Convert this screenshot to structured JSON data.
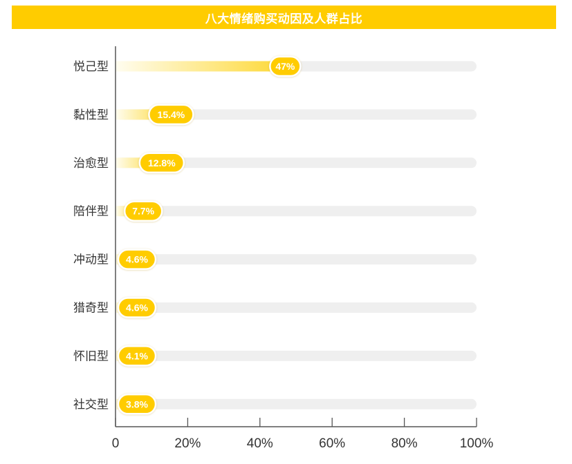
{
  "chart_data": {
    "type": "bar",
    "orientation": "horizontal",
    "title": "八大情绪购买动因及人群占比",
    "categories": [
      "悦己型",
      "黏性型",
      "治愈型",
      "陪伴型",
      "冲动型",
      "猎奇型",
      "怀旧型",
      "社交型"
    ],
    "values": [
      47,
      15.4,
      12.8,
      7.7,
      4.6,
      4.6,
      4.1,
      3.8
    ],
    "value_labels": [
      "47%",
      "15.4%",
      "12.8%",
      "7.7%",
      "4.6%",
      "4.6%",
      "4.1%",
      "3.8%"
    ],
    "xlim": [
      0,
      100
    ],
    "xticks": [
      0,
      20,
      40,
      60,
      80,
      100
    ],
    "xtick_labels": [
      "0",
      "20%",
      "40%",
      "60%",
      "80%",
      "100%"
    ],
    "xlabel": "",
    "ylabel": "",
    "grid": false,
    "colors": {
      "accent": "#FFCC00",
      "track": "#EFEFEF",
      "gradient_start": "#FFFDF0",
      "gradient_end": "#FDD835",
      "axis": "#555555",
      "label_text": "#333333"
    }
  }
}
